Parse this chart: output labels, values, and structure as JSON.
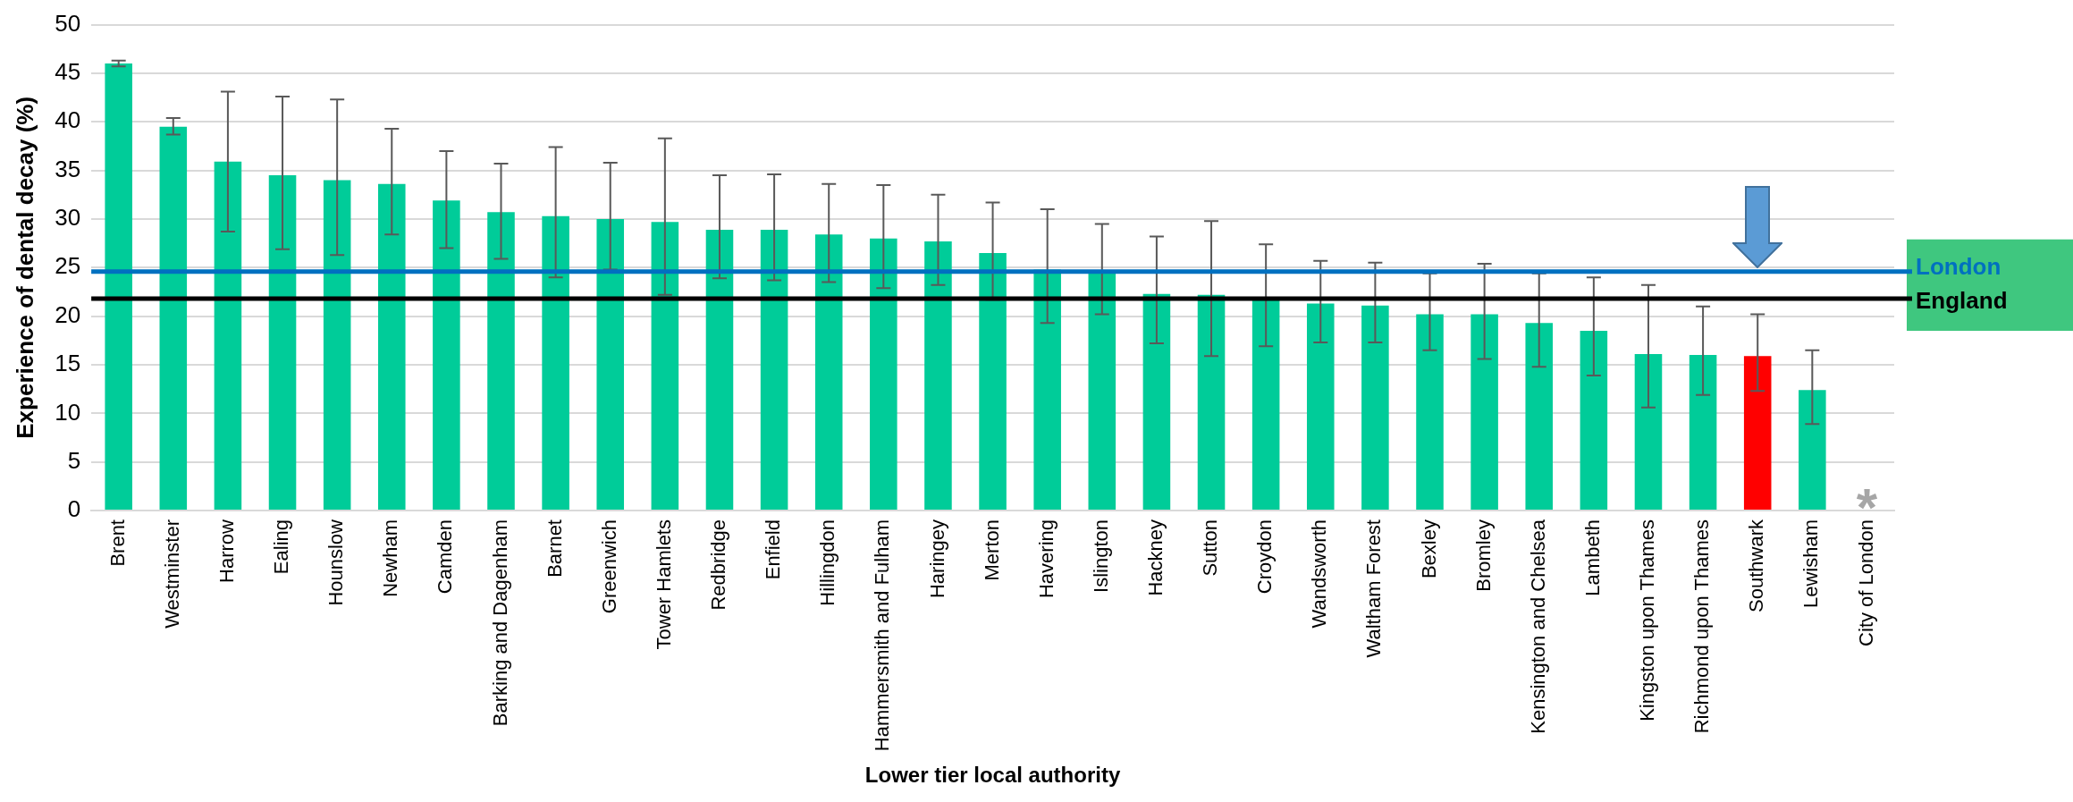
{
  "chart_data": {
    "type": "bar",
    "xlabel": "Lower tier local authority",
    "ylabel": "Experience of dental decay (%)",
    "categories": [
      "Brent",
      "Westminster",
      "Harrow",
      "Ealing",
      "Hounslow",
      "Newham",
      "Camden",
      "Barking and Dagenham",
      "Barnet",
      "Greenwich",
      "Tower Hamlets",
      "Redbridge",
      "Enfield",
      "Hillingdon",
      "Hammersmith and Fulham",
      "Haringey",
      "Merton",
      "Havering",
      "Islington",
      "Hackney",
      "Sutton",
      "Croydon",
      "Wandsworth",
      "Waltham Forest",
      "Bexley",
      "Bromley",
      "Kensington and Chelsea",
      "Lambeth",
      "Kingston upon Thames",
      "Richmond upon Thames",
      "Southwark",
      "Lewisham",
      "City of London"
    ],
    "values": [
      46.0,
      39.5,
      35.9,
      34.5,
      34.0,
      33.6,
      31.9,
      30.7,
      30.3,
      30.0,
      29.7,
      28.9,
      28.9,
      28.4,
      28.0,
      27.7,
      26.5,
      24.8,
      24.4,
      22.3,
      22.2,
      21.8,
      21.3,
      21.1,
      20.2,
      20.2,
      19.3,
      18.5,
      16.1,
      16.0,
      15.9,
      12.4,
      null
    ],
    "colors": [
      "#00cc99",
      "#00cc99",
      "#00cc99",
      "#00cc99",
      "#00cc99",
      "#00cc99",
      "#00cc99",
      "#00cc99",
      "#00cc99",
      "#00cc99",
      "#00cc99",
      "#00cc99",
      "#00cc99",
      "#00cc99",
      "#00cc99",
      "#00cc99",
      "#00cc99",
      "#00cc99",
      "#00cc99",
      "#00cc99",
      "#00cc99",
      "#00cc99",
      "#00cc99",
      "#00cc99",
      "#00cc99",
      "#00cc99",
      "#00cc99",
      "#00cc99",
      "#00cc99",
      "#00cc99",
      "#ff0000",
      "#00cc99",
      "#00cc99"
    ],
    "errors": [
      [
        45.7,
        46.3
      ],
      [
        38.7,
        40.4
      ],
      [
        28.7,
        43.1
      ],
      [
        26.9,
        42.6
      ],
      [
        26.3,
        42.3
      ],
      [
        28.4,
        39.3
      ],
      [
        27.0,
        37.0
      ],
      [
        25.9,
        35.7
      ],
      [
        24.0,
        37.4
      ],
      [
        24.8,
        35.8
      ],
      [
        22.2,
        38.3
      ],
      [
        23.9,
        34.5
      ],
      [
        23.7,
        34.6
      ],
      [
        23.5,
        33.6
      ],
      [
        22.9,
        33.5
      ],
      [
        23.2,
        32.5
      ],
      [
        21.7,
        31.7
      ],
      [
        19.3,
        31.0
      ],
      [
        20.2,
        29.5
      ],
      [
        17.2,
        28.2
      ],
      [
        15.9,
        29.8
      ],
      [
        16.9,
        27.4
      ],
      [
        17.3,
        25.7
      ],
      [
        17.3,
        25.5
      ],
      [
        16.5,
        24.4
      ],
      [
        15.6,
        25.4
      ],
      [
        14.8,
        24.4
      ],
      [
        13.9,
        24.0
      ],
      [
        10.6,
        23.2
      ],
      [
        11.9,
        21.0
      ],
      [
        12.3,
        20.2
      ],
      [
        8.9,
        16.5
      ],
      null
    ],
    "ylim": [
      0,
      50
    ],
    "yticks": [
      0,
      5,
      10,
      15,
      20,
      25,
      30,
      35,
      40,
      45,
      50
    ],
    "grid": "y",
    "legend": false,
    "ref_lines": [
      {
        "axis": "y",
        "value": 24.6,
        "label": "London",
        "color": "#0070c0"
      },
      {
        "axis": "y",
        "value": 21.8,
        "label": "England",
        "color": "#000000"
      }
    ],
    "annotations": [
      "*"
    ]
  }
}
